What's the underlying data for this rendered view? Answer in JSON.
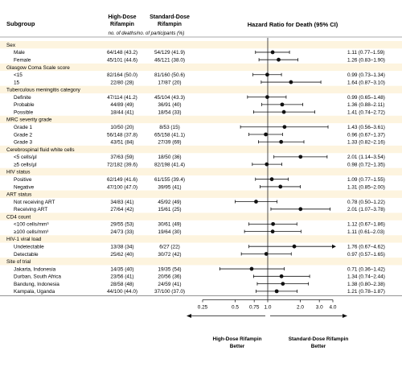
{
  "header": {
    "subgroup": "Subgroup",
    "col_high_1": "High-Dose",
    "col_high_2": "Rifampin",
    "col_std_1": "Standard-Dose",
    "col_std_2": "Rifampin",
    "col_note": "no. of deaths/no. of participants (%)",
    "col_hr": "Hazard Ratio for Death (95% CI)"
  },
  "footer": {
    "left_1": "High-Dose Rifampin",
    "left_2": "Better",
    "right_1": "Standard-Dose Rifampin",
    "right_2": "Better"
  },
  "chart_data": {
    "type": "forest",
    "xlabel": "",
    "x_scale": "log",
    "xlim": [
      0.25,
      4.0
    ],
    "xticks": [
      0.25,
      0.5,
      0.75,
      1.0,
      2.0,
      3.0,
      4.0
    ],
    "xtick_labels": [
      "0.25",
      "0.5",
      "0.75",
      "1.0",
      "2.0",
      "3.0",
      "4.0"
    ],
    "reference_line": 1.0,
    "groups": [
      {
        "category": "Sex",
        "rows": [
          {
            "label": "Male",
            "high": "64/148 (43.2)",
            "std": "54/129 (41.9)",
            "hr_text": "1.11 (0.77–1.59)",
            "hr": 1.11,
            "lo": 0.77,
            "hi": 1.59
          },
          {
            "label": "Female",
            "high": "45/101 (44.6)",
            "std": "46/121 (38.0)",
            "hr_text": "1.26 (0.83–1.90)",
            "hr": 1.26,
            "lo": 0.83,
            "hi": 1.9
          }
        ]
      },
      {
        "category": "Glasgow Coma Scale score",
        "rows": [
          {
            "label": "<15",
            "high": "82/164 (50.0)",
            "std": "81/160 (50.6)",
            "hr_text": "0.99 (0.73–1.34)",
            "hr": 0.99,
            "lo": 0.73,
            "hi": 1.34
          },
          {
            "label": "15",
            "high": "22/80 (28)",
            "std": "17/87 (20)",
            "hr_text": "1.64 (0.87–3.10)",
            "hr": 1.64,
            "lo": 0.87,
            "hi": 3.1
          }
        ]
      },
      {
        "category": "Tuberculous meningitis category",
        "rows": [
          {
            "label": "Definite",
            "high": "47/114 (41.2)",
            "std": "45/104 (43.3)",
            "hr_text": "0.99 (0.65–1.48)",
            "hr": 0.99,
            "lo": 0.65,
            "hi": 1.48
          },
          {
            "label": "Probable",
            "high": "44/89 (49)",
            "std": "36/91 (40)",
            "hr_text": "1.36 (0.88–2.11)",
            "hr": 1.36,
            "lo": 0.88,
            "hi": 2.11
          },
          {
            "label": "Possible",
            "high": "18/44 (41)",
            "std": "18/54 (33)",
            "hr_text": "1.41 (0.74–2.72)",
            "hr": 1.41,
            "lo": 0.74,
            "hi": 2.72
          }
        ]
      },
      {
        "category": "MRC severity grade",
        "rows": [
          {
            "label": "Grade 1",
            "high": "10/50 (20)",
            "std": "8/53 (15)",
            "hr_text": "1.43 (0.56–3.61)",
            "hr": 1.43,
            "lo": 0.56,
            "hi": 3.61
          },
          {
            "label": "Grade 2",
            "high": "56/148 (37.8)",
            "std": "65/158 (41.1)",
            "hr_text": "0.96 (0.67–1.37)",
            "hr": 0.96,
            "lo": 0.67,
            "hi": 1.37
          },
          {
            "label": "Grade 3",
            "high": "43/51 (84)",
            "std": "27/39 (69)",
            "hr_text": "1.33 (0.82–2.16)",
            "hr": 1.33,
            "lo": 0.82,
            "hi": 2.16
          }
        ]
      },
      {
        "category": "Cerebrospinal fluid white cells",
        "rows": [
          {
            "label": "<5 cells/µl",
            "high": "37/63 (59)",
            "std": "18/50 (36)",
            "hr_text": "2.01 (1.14–3.54)",
            "hr": 2.01,
            "lo": 1.14,
            "hi": 3.54
          },
          {
            "label": "≥5 cells/µl",
            "high": "72/182 (39.6)",
            "std": "82/198 (41.4)",
            "hr_text": "0.98 (0.72–1.35)",
            "hr": 0.98,
            "lo": 0.72,
            "hi": 1.35
          }
        ]
      },
      {
        "category": "HIV status",
        "rows": [
          {
            "label": "Positive",
            "high": "62/149 (41.6)",
            "std": "61/155 (39.4)",
            "hr_text": "1.09 (0.77–1.55)",
            "hr": 1.09,
            "lo": 0.77,
            "hi": 1.55
          },
          {
            "label": "Negative",
            "high": "47/100 (47.0)",
            "std": "39/95 (41)",
            "hr_text": "1.31 (0.85–2.00)",
            "hr": 1.31,
            "lo": 0.85,
            "hi": 2.0
          }
        ]
      },
      {
        "category": "ART status",
        "rows": [
          {
            "label": "Not receiving ART",
            "high": "34/83 (41)",
            "std": "45/92 (49)",
            "hr_text": "0.78 (0.50–1.22)",
            "hr": 0.78,
            "lo": 0.5,
            "hi": 1.22
          },
          {
            "label": "Receiving ART",
            "high": "27/64 (42)",
            "std": "15/61 (25)",
            "hr_text": "2.01 (1.07–3.78)",
            "hr": 2.01,
            "lo": 1.07,
            "hi": 3.78
          }
        ]
      },
      {
        "category": "CD4 count",
        "rows": [
          {
            "label": "<100 cells/mm³",
            "high": "29/55 (53)",
            "std": "30/61 (49)",
            "hr_text": "1.12 (0.67–1.86)",
            "hr": 1.12,
            "lo": 0.67,
            "hi": 1.86
          },
          {
            "label": "≥100 cells/mm³",
            "high": "24/73 (33)",
            "std": "19/64 (30)",
            "hr_text": "1.11 (0.61–2.03)",
            "hr": 1.11,
            "lo": 0.61,
            "hi": 2.03
          }
        ]
      },
      {
        "category": "HIV-1 viral load",
        "rows": [
          {
            "label": "Undetectable",
            "high": "13/38 (34)",
            "std": "6/27 (22)",
            "hr_text": "1.76 (0.67–4.62)",
            "hr": 1.76,
            "lo": 0.67,
            "hi": 4.62,
            "arrow_right": true
          },
          {
            "label": "Detectable",
            "high": "25/62 (40)",
            "std": "30/72 (42)",
            "hr_text": "0.97 (0.57–1.65)",
            "hr": 0.97,
            "lo": 0.57,
            "hi": 1.65
          }
        ]
      },
      {
        "category": "Site of trial",
        "rows": [
          {
            "label": "Jakarta, Indonesia",
            "high": "14/35 (40)",
            "std": "19/35 (54)",
            "hr_text": "0.71 (0.36–1.42)",
            "hr": 0.71,
            "lo": 0.36,
            "hi": 1.42
          },
          {
            "label": "Durban, South Africa",
            "high": "23/56 (41)",
            "std": "20/56 (36)",
            "hr_text": "1.34 (0.74–2.44)",
            "hr": 1.34,
            "lo": 0.74,
            "hi": 2.44
          },
          {
            "label": "Bandung, Indonesia",
            "high": "28/58 (48)",
            "std": "24/59 (41)",
            "hr_text": "1.38 (0.80–2.38)",
            "hr": 1.38,
            "lo": 0.8,
            "hi": 2.38
          },
          {
            "label": "Kampala, Uganda",
            "high": "44/100 (44.0)",
            "std": "37/100 (37.0)",
            "hr_text": "1.21 (0.78–1.87)",
            "hr": 1.21,
            "lo": 0.78,
            "hi": 1.87
          }
        ]
      }
    ]
  }
}
